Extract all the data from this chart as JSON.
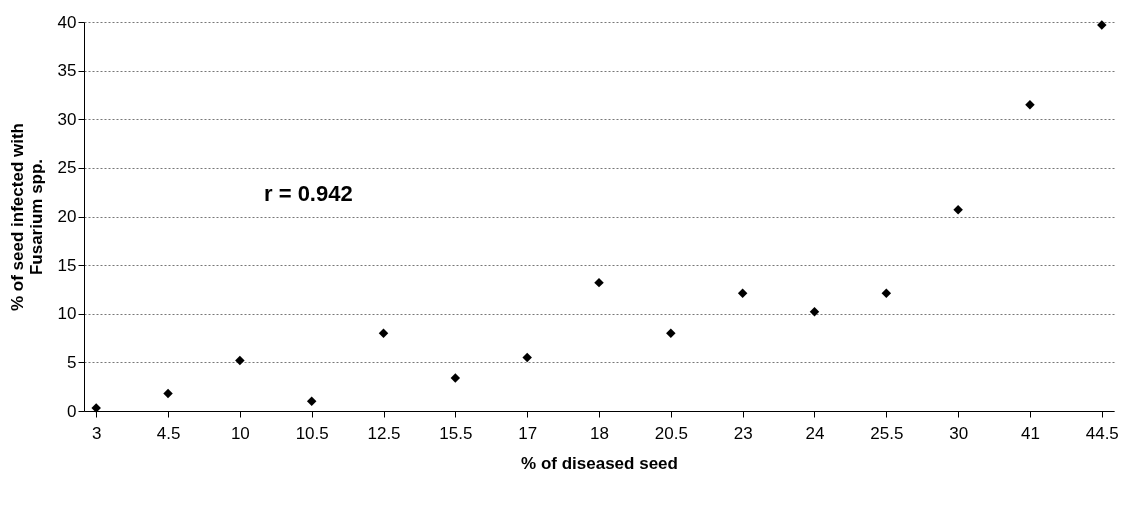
{
  "chart_data": {
    "type": "scatter",
    "xlabel": "% of diseased seed",
    "ylabel": "% of seed infected with Fusarium spp.",
    "categories": [
      "3",
      "4.5",
      "10",
      "10.5",
      "12.5",
      "15.5",
      "17",
      "18",
      "20.5",
      "23",
      "24",
      "25.5",
      "30",
      "41",
      "44.5"
    ],
    "series": [
      {
        "color": "#000000",
        "values": [
          0.3,
          1.8,
          5.2,
          1,
          8,
          3.4,
          5.5,
          13.2,
          8,
          12.1,
          10.2,
          12.1,
          20.7,
          31.5,
          39.7
        ]
      }
    ],
    "ylim": [
      0,
      40
    ],
    "yticks": [
      0,
      5,
      10,
      15,
      20,
      25,
      30,
      35,
      40
    ],
    "grid": "y",
    "marker": "diamond",
    "annotations": [
      "r = 0.942"
    ]
  }
}
